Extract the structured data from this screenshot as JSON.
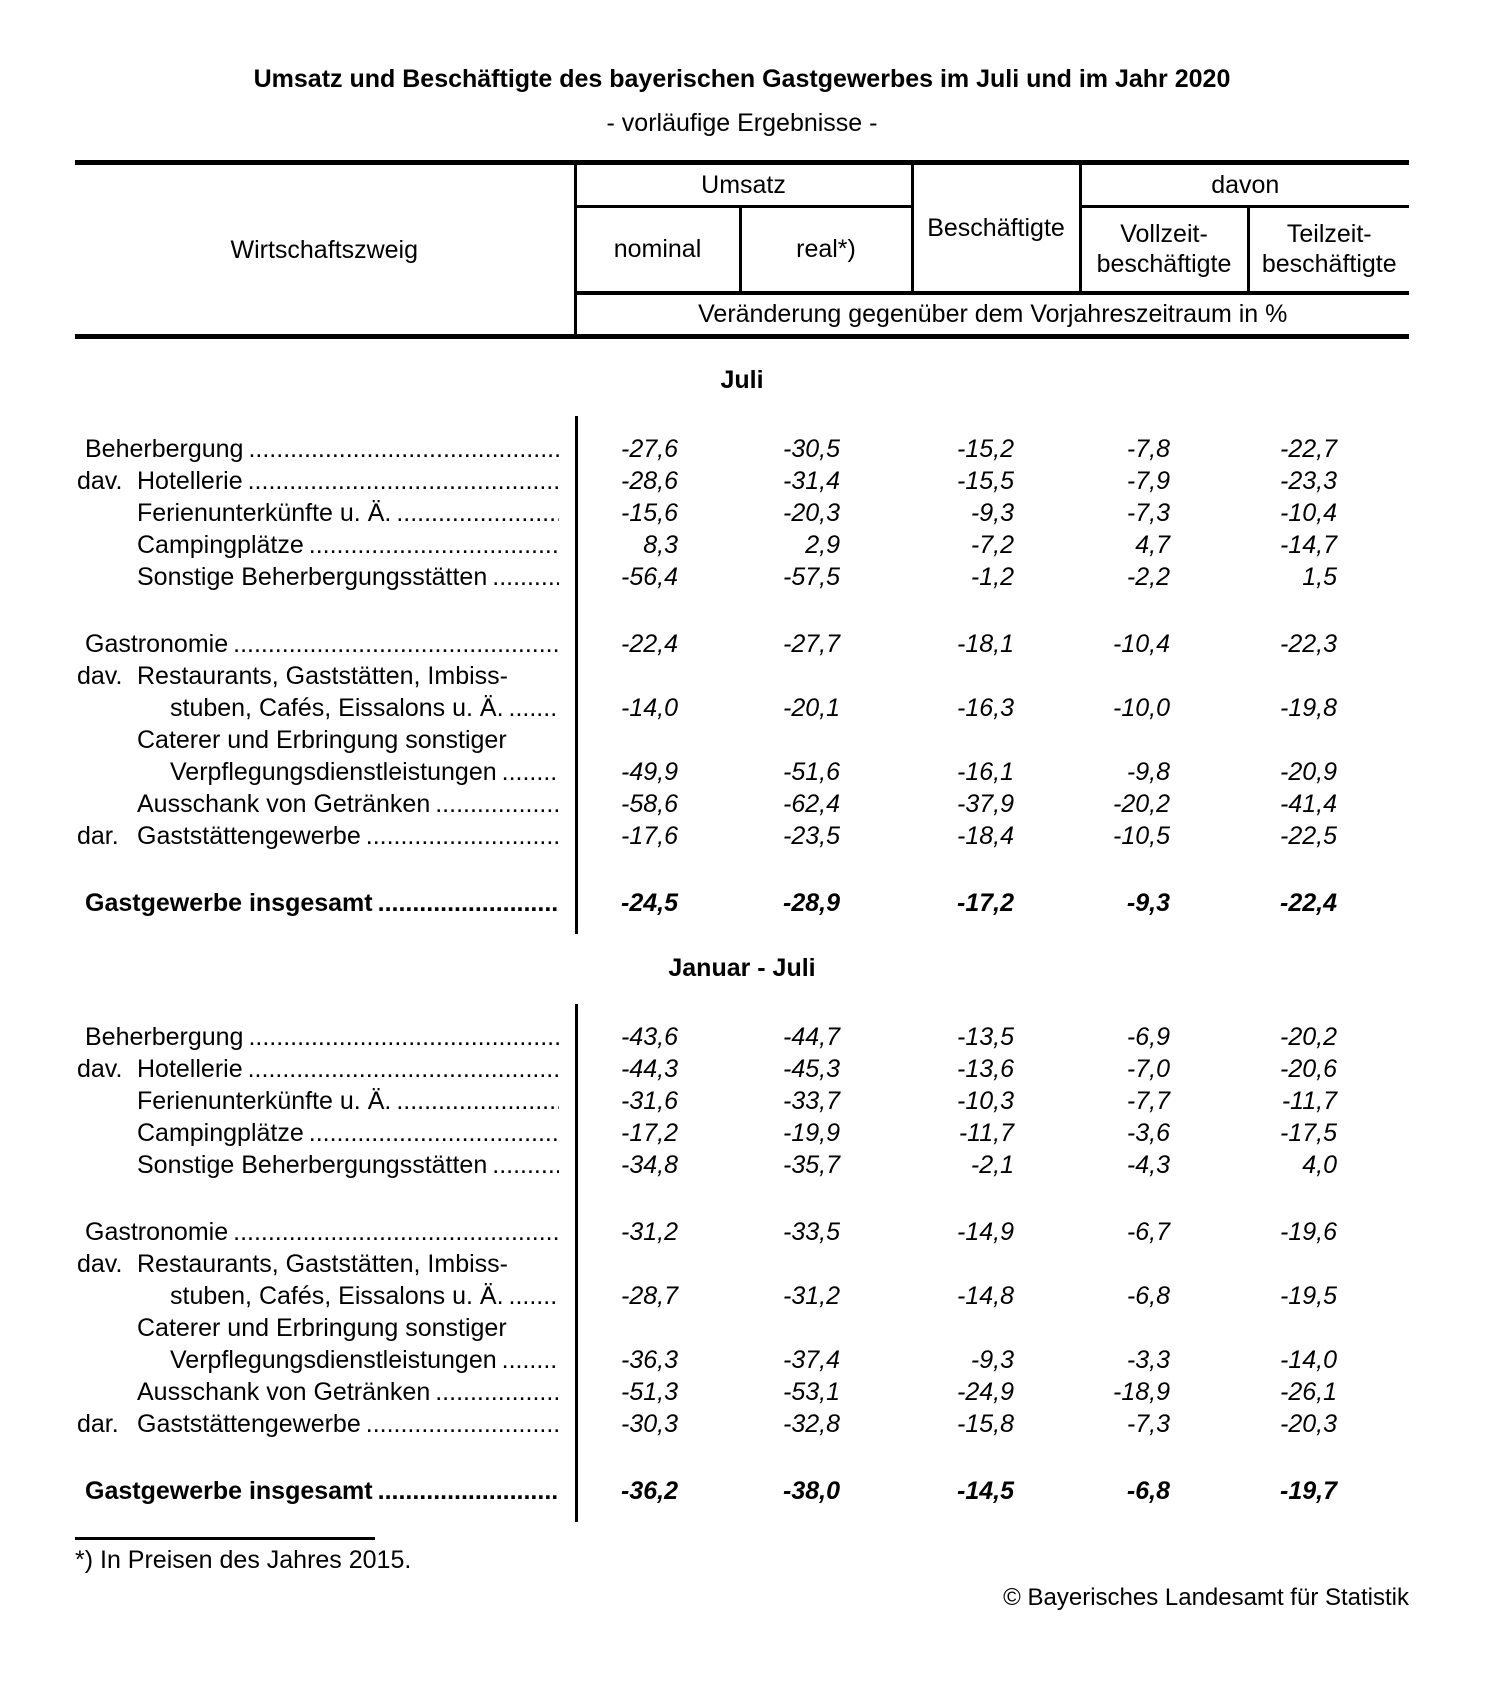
{
  "title": "Umsatz und Beschäftigte des bayerischen Gastgewerbes im Juli und im Jahr 2020",
  "subtitle": "- vorläufige Ergebnisse -",
  "colors": {
    "text": "#000000",
    "background": "#ffffff",
    "border": "#000000"
  },
  "header": {
    "row_header": "Wirtschaftszweig",
    "umsatz": "Umsatz",
    "nominal": "nominal",
    "real": "real*)",
    "beschaeftigte": "Beschäftigte",
    "davon": "davon",
    "vollzeit_line1": "Vollzeit-",
    "vollzeit_line2": "beschäftigte",
    "teilzeit_line1": "Teilzeit-",
    "teilzeit_line2": "beschäftigte",
    "change_note": "Veränderung gegenüber dem Vorjahreszeitraum in %"
  },
  "leader_dots": "....................................................................................................",
  "sections": [
    {
      "title": "Juli",
      "rows": [
        {
          "prefix": "",
          "bold": false,
          "gap_before": false,
          "lines": [
            {
              "text": "Beherbergung",
              "indent": 0,
              "dots": true
            }
          ],
          "values": [
            "-27,6",
            "-30,5",
            "-15,2",
            "-7,8",
            "-22,7"
          ]
        },
        {
          "prefix": "dav.",
          "bold": false,
          "gap_before": false,
          "lines": [
            {
              "text": "Hotellerie",
              "indent": 1,
              "dots": true
            }
          ],
          "values": [
            "-28,6",
            "-31,4",
            "-15,5",
            "-7,9",
            "-23,3"
          ]
        },
        {
          "prefix": "",
          "bold": false,
          "gap_before": false,
          "lines": [
            {
              "text": "Ferienunterkünfte u. Ä.",
              "indent": 1,
              "dots": true
            }
          ],
          "values": [
            "-15,6",
            "-20,3",
            "-9,3",
            "-7,3",
            "-10,4"
          ]
        },
        {
          "prefix": "",
          "bold": false,
          "gap_before": false,
          "lines": [
            {
              "text": "Campingplätze",
              "indent": 1,
              "dots": true
            }
          ],
          "values": [
            "8,3",
            "2,9",
            "-7,2",
            "4,7",
            "-14,7"
          ]
        },
        {
          "prefix": "",
          "bold": false,
          "gap_before": false,
          "lines": [
            {
              "text": "Sonstige Beherbergungsstätten",
              "indent": 1,
              "dots": true
            }
          ],
          "values": [
            "-56,4",
            "-57,5",
            "-1,2",
            "-2,2",
            "1,5"
          ]
        },
        {
          "prefix": "",
          "bold": false,
          "gap_before": true,
          "lines": [
            {
              "text": "Gastronomie",
              "indent": 0,
              "dots": true
            }
          ],
          "values": [
            "-22,4",
            "-27,7",
            "-18,1",
            "-10,4",
            "-22,3"
          ]
        },
        {
          "prefix": "dav.",
          "bold": false,
          "gap_before": false,
          "lines": [
            {
              "text": "Restaurants, Gaststätten, Imbiss-",
              "indent": 1,
              "dots": false
            },
            {
              "text": "stuben, Cafés, Eissalons u. Ä.",
              "indent": 2,
              "dots": true
            }
          ],
          "values": [
            "-14,0",
            "-20,1",
            "-16,3",
            "-10,0",
            "-19,8"
          ]
        },
        {
          "prefix": "",
          "bold": false,
          "gap_before": false,
          "lines": [
            {
              "text": "Caterer und Erbringung sonstiger",
              "indent": 1,
              "dots": false
            },
            {
              "text": "Verpflegungsdienstleistungen",
              "indent": 2,
              "dots": true
            }
          ],
          "values": [
            "-49,9",
            "-51,6",
            "-16,1",
            "-9,8",
            "-20,9"
          ]
        },
        {
          "prefix": "",
          "bold": false,
          "gap_before": false,
          "lines": [
            {
              "text": "Ausschank von Getränken",
              "indent": 1,
              "dots": true
            }
          ],
          "values": [
            "-58,6",
            "-62,4",
            "-37,9",
            "-20,2",
            "-41,4"
          ]
        },
        {
          "prefix": "dar.",
          "bold": false,
          "gap_before": false,
          "lines": [
            {
              "text": "Gaststättengewerbe",
              "indent": 1,
              "dots": true
            }
          ],
          "values": [
            "-17,6",
            "-23,5",
            "-18,4",
            "-10,5",
            "-22,5"
          ]
        },
        {
          "prefix": "",
          "bold": true,
          "gap_before": true,
          "lines": [
            {
              "text": "Gastgewerbe insgesamt",
              "indent": 0,
              "dots": true
            }
          ],
          "values": [
            "-24,5",
            "-28,9",
            "-17,2",
            "-9,3",
            "-22,4"
          ]
        }
      ]
    },
    {
      "title": "Januar - Juli",
      "rows": [
        {
          "prefix": "",
          "bold": false,
          "gap_before": false,
          "lines": [
            {
              "text": "Beherbergung",
              "indent": 0,
              "dots": true
            }
          ],
          "values": [
            "-43,6",
            "-44,7",
            "-13,5",
            "-6,9",
            "-20,2"
          ]
        },
        {
          "prefix": "dav.",
          "bold": false,
          "gap_before": false,
          "lines": [
            {
              "text": "Hotellerie",
              "indent": 1,
              "dots": true
            }
          ],
          "values": [
            "-44,3",
            "-45,3",
            "-13,6",
            "-7,0",
            "-20,6"
          ]
        },
        {
          "prefix": "",
          "bold": false,
          "gap_before": false,
          "lines": [
            {
              "text": "Ferienunterkünfte u. Ä.",
              "indent": 1,
              "dots": true
            }
          ],
          "values": [
            "-31,6",
            "-33,7",
            "-10,3",
            "-7,7",
            "-11,7"
          ]
        },
        {
          "prefix": "",
          "bold": false,
          "gap_before": false,
          "lines": [
            {
              "text": "Campingplätze",
              "indent": 1,
              "dots": true
            }
          ],
          "values": [
            "-17,2",
            "-19,9",
            "-11,7",
            "-3,6",
            "-17,5"
          ]
        },
        {
          "prefix": "",
          "bold": false,
          "gap_before": false,
          "lines": [
            {
              "text": "Sonstige Beherbergungsstätten",
              "indent": 1,
              "dots": true
            }
          ],
          "values": [
            "-34,8",
            "-35,7",
            "-2,1",
            "-4,3",
            "4,0"
          ]
        },
        {
          "prefix": "",
          "bold": false,
          "gap_before": true,
          "lines": [
            {
              "text": "Gastronomie",
              "indent": 0,
              "dots": true
            }
          ],
          "values": [
            "-31,2",
            "-33,5",
            "-14,9",
            "-6,7",
            "-19,6"
          ]
        },
        {
          "prefix": "dav.",
          "bold": false,
          "gap_before": false,
          "lines": [
            {
              "text": "Restaurants, Gaststätten, Imbiss-",
              "indent": 1,
              "dots": false
            },
            {
              "text": "stuben, Cafés, Eissalons u. Ä.",
              "indent": 2,
              "dots": true
            }
          ],
          "values": [
            "-28,7",
            "-31,2",
            "-14,8",
            "-6,8",
            "-19,5"
          ]
        },
        {
          "prefix": "",
          "bold": false,
          "gap_before": false,
          "lines": [
            {
              "text": "Caterer und Erbringung sonstiger",
              "indent": 1,
              "dots": false
            },
            {
              "text": "Verpflegungsdienstleistungen",
              "indent": 2,
              "dots": true
            }
          ],
          "values": [
            "-36,3",
            "-37,4",
            "-9,3",
            "-3,3",
            "-14,0"
          ]
        },
        {
          "prefix": "",
          "bold": false,
          "gap_before": false,
          "lines": [
            {
              "text": "Ausschank von Getränken",
              "indent": 1,
              "dots": true
            }
          ],
          "values": [
            "-51,3",
            "-53,1",
            "-24,9",
            "-18,9",
            "-26,1"
          ]
        },
        {
          "prefix": "dar.",
          "bold": false,
          "gap_before": false,
          "lines": [
            {
              "text": "Gaststättengewerbe",
              "indent": 1,
              "dots": true
            }
          ],
          "values": [
            "-30,3",
            "-32,8",
            "-15,8",
            "-7,3",
            "-20,3"
          ]
        },
        {
          "prefix": "",
          "bold": true,
          "gap_before": true,
          "lines": [
            {
              "text": "Gastgewerbe insgesamt",
              "indent": 0,
              "dots": true
            }
          ],
          "values": [
            "-36,2",
            "-38,0",
            "-14,5",
            "-6,8",
            "-19,7"
          ]
        }
      ]
    }
  ],
  "footnote": "*) In Preisen des Jahres 2015.",
  "copyright": "© Bayerisches Landesamt für Statistik"
}
